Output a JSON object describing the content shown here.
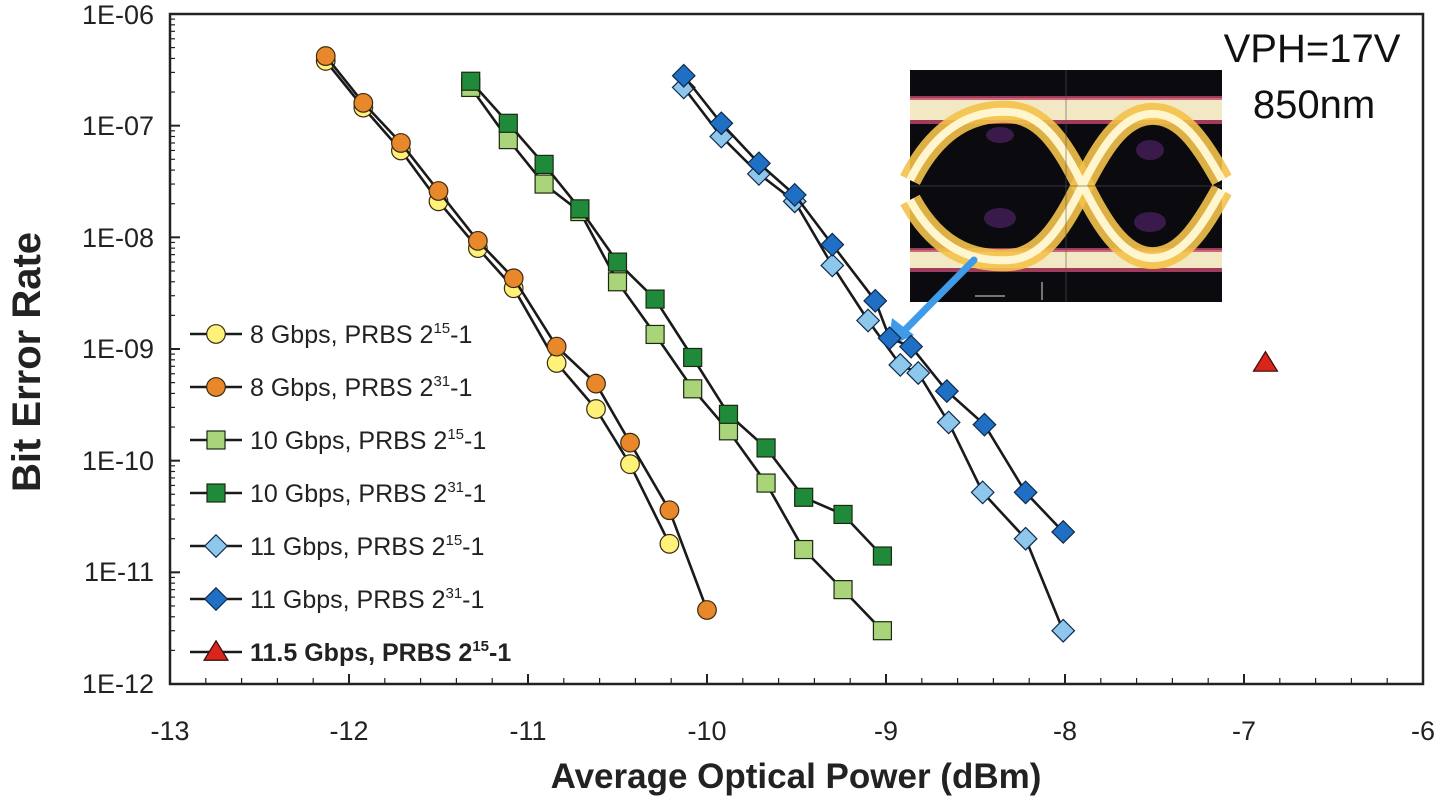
{
  "chart_data": {
    "type": "line",
    "xlabel": "Average Optical Power (dBm)",
    "ylabel": "Bit Error Rate",
    "y_scale": "log",
    "xlim": [
      -13,
      -6
    ],
    "ylim": [
      1e-12,
      1e-06
    ],
    "x_ticks": [
      "-13",
      "-12",
      "-11",
      "-10",
      "-9",
      "-8",
      "-7",
      "-6"
    ],
    "y_ticks": [
      "1E-12",
      "1E-11",
      "1E-10",
      "1E-09",
      "1E-08",
      "1E-07",
      "1E-06"
    ],
    "annotation_lines": [
      "VPH=17V",
      "850nm"
    ],
    "legend_position": "left",
    "series": [
      {
        "name": "8 Gbps, PRBS 2^15-1",
        "label_main": "8 Gbps, PRBS 2",
        "label_sup": "15",
        "label_tail": "-1",
        "bold": false,
        "marker": "circle",
        "color": "#fff27a",
        "line": true,
        "x": [
          -12.13,
          -11.92,
          -11.71,
          -11.5,
          -11.28,
          -11.08,
          -10.84,
          -10.62,
          -10.43,
          -10.21
        ],
        "y": [
          3.8e-07,
          1.45e-07,
          6e-08,
          2.1e-08,
          8e-09,
          3.5e-09,
          7.5e-10,
          2.9e-10,
          9.3e-11,
          1.8e-11
        ]
      },
      {
        "name": "8 Gbps, PRBS 2^31-1",
        "label_main": "8 Gbps, PRBS 2",
        "label_sup": "31",
        "label_tail": "-1",
        "bold": false,
        "marker": "circle",
        "color": "#e8882a",
        "line": true,
        "x": [
          -12.13,
          -11.92,
          -11.71,
          -11.5,
          -11.28,
          -11.08,
          -10.84,
          -10.62,
          -10.43,
          -10.21,
          -10.0
        ],
        "y": [
          4.2e-07,
          1.6e-07,
          7e-08,
          2.6e-08,
          9.3e-09,
          4.3e-09,
          1.05e-09,
          4.9e-10,
          1.45e-10,
          3.6e-11,
          4.6e-12
        ]
      },
      {
        "name": "10 Gbps, PRBS 2^15-1",
        "label_main": "10 Gbps, PRBS 2",
        "label_sup": "15",
        "label_tail": "-1",
        "bold": false,
        "marker": "square",
        "color": "#a9d47a",
        "line": true,
        "x": [
          -11.32,
          -11.11,
          -10.91,
          -10.71,
          -10.5,
          -10.29,
          -10.08,
          -9.88,
          -9.67,
          -9.46,
          -9.24,
          -9.02
        ],
        "y": [
          2.2e-07,
          7.5e-08,
          3e-08,
          1.7e-08,
          4e-09,
          1.35e-09,
          4.4e-10,
          1.85e-10,
          6.3e-11,
          1.6e-11,
          7e-12,
          3e-12
        ]
      },
      {
        "name": "10 Gbps, PRBS 2^31-1",
        "label_main": "10 Gbps, PRBS 2",
        "label_sup": "31",
        "label_tail": "-1",
        "bold": false,
        "marker": "square",
        "color": "#1f8a3a",
        "line": true,
        "x": [
          -11.32,
          -11.11,
          -10.91,
          -10.71,
          -10.5,
          -10.29,
          -10.08,
          -9.88,
          -9.67,
          -9.46,
          -9.24,
          -9.02
        ],
        "y": [
          2.5e-07,
          1.05e-07,
          4.5e-08,
          1.8e-08,
          6e-09,
          2.8e-09,
          8.4e-10,
          2.6e-10,
          1.3e-10,
          4.7e-11,
          3.3e-11,
          1.4e-11
        ]
      },
      {
        "name": "11 Gbps, PRBS 2^15-1",
        "label_main": "11 Gbps, PRBS 2",
        "label_sup": "15",
        "label_tail": "-1",
        "bold": false,
        "marker": "diamond",
        "color": "#8ec7ec",
        "line": true,
        "x": [
          -10.13,
          -9.92,
          -9.71,
          -9.51,
          -9.3,
          -9.1,
          -8.92,
          -8.82,
          -8.65,
          -8.46,
          -8.22,
          -8.01
        ],
        "y": [
          2.2e-07,
          8e-08,
          3.7e-08,
          2.1e-08,
          5.6e-09,
          1.8e-09,
          7.2e-10,
          6.1e-10,
          2.2e-10,
          5.2e-11,
          2e-11,
          3e-12
        ]
      },
      {
        "name": "11 Gbps, PRBS 2^31-1",
        "label_main": "11 Gbps, PRBS 2",
        "label_sup": "31",
        "label_tail": "-1",
        "bold": false,
        "marker": "diamond",
        "color": "#1f6fc4",
        "line": true,
        "x": [
          -10.13,
          -9.92,
          -9.71,
          -9.51,
          -9.3,
          -9.06,
          -8.98,
          -8.86,
          -8.66,
          -8.45,
          -8.22,
          -8.01
        ],
        "y": [
          2.8e-07,
          1.05e-07,
          4.6e-08,
          2.4e-08,
          8.6e-09,
          2.7e-09,
          1.25e-09,
          1.05e-09,
          4.2e-10,
          2.1e-10,
          5.2e-11,
          2.3e-11
        ]
      },
      {
        "name": "11.5 Gbps, PRBS 2^15-1",
        "label_main": "11.5 Gbps, PRBS 2",
        "label_sup": "15",
        "label_tail": "-1",
        "bold": true,
        "marker": "triangle",
        "color": "#d9261c",
        "line": false,
        "x": [
          -6.88
        ],
        "y": [
          7.5e-10
        ]
      }
    ]
  }
}
